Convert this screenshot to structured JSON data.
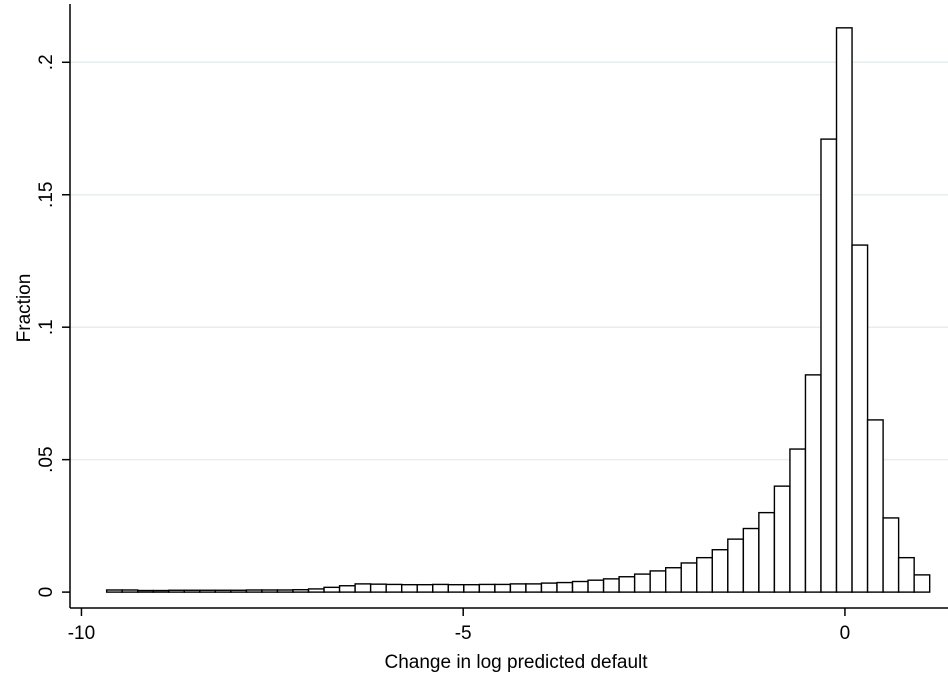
{
  "chart_data": {
    "type": "bar",
    "subtype": "histogram",
    "xlabel": "Change in log predicted default",
    "ylabel": "Fraction",
    "xlim": [
      -10.15,
      1.35
    ],
    "ylim": [
      -0.006,
      0.222
    ],
    "x_ticks": [
      {
        "value": -10,
        "label": "-10"
      },
      {
        "value": -5,
        "label": "-5"
      },
      {
        "value": 0,
        "label": "0"
      }
    ],
    "y_ticks": [
      {
        "value": 0,
        "label": "0"
      },
      {
        "value": 0.05,
        "label": ".05"
      },
      {
        "value": 0.1,
        "label": ".1"
      },
      {
        "value": 0.15,
        "label": ".15"
      },
      {
        "value": 0.2,
        "label": ".2"
      }
    ],
    "grid": "horizontal",
    "bar_fill": "#ffffff",
    "bar_stroke": "#000000",
    "gridline_color": "#e6eef0",
    "bin_start": -9.67,
    "bin_width": 0.2034,
    "values": [
      0.0008,
      0.0008,
      0.0006,
      0.0006,
      0.0007,
      0.0007,
      0.0007,
      0.0007,
      0.0007,
      0.0008,
      0.0008,
      0.0008,
      0.0009,
      0.0012,
      0.0018,
      0.0024,
      0.0031,
      0.003,
      0.0029,
      0.0028,
      0.0028,
      0.0029,
      0.0028,
      0.0028,
      0.0029,
      0.0029,
      0.0031,
      0.0031,
      0.0034,
      0.0036,
      0.004,
      0.0045,
      0.005,
      0.0058,
      0.0068,
      0.008,
      0.0092,
      0.011,
      0.013,
      0.016,
      0.02,
      0.024,
      0.03,
      0.04,
      0.054,
      0.082,
      0.171,
      0.213,
      0.131,
      0.065,
      0.028,
      0.013,
      0.0065
    ]
  }
}
